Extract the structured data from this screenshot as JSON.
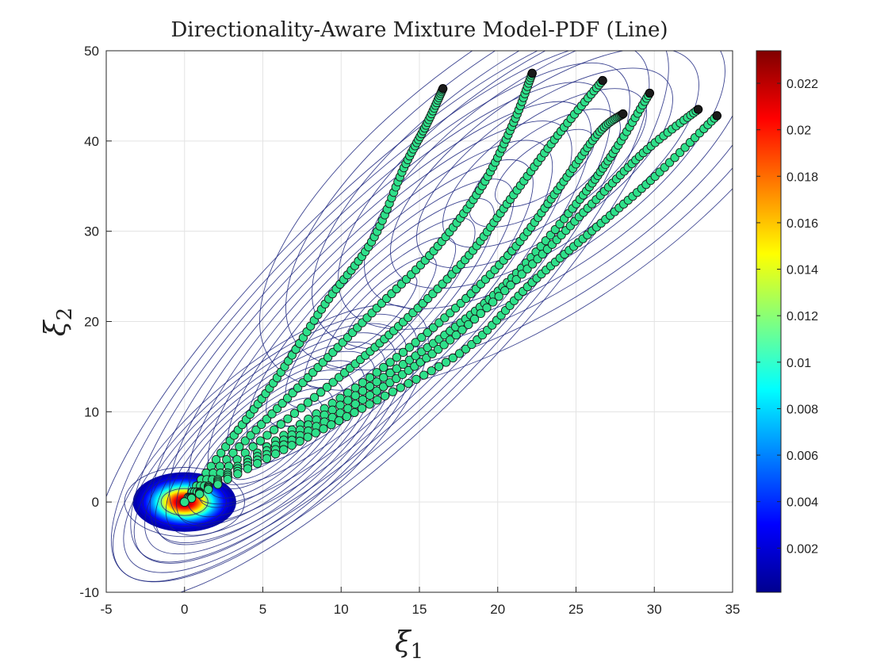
{
  "chart_data": {
    "type": "scatter",
    "title": "Directionality-Aware Mixture Model-PDF (Line)",
    "xlabel": "ξ",
    "xlabel_sub": "1",
    "ylabel": "ξ",
    "ylabel_sub": "2",
    "xlim": [
      -5,
      35
    ],
    "ylim": [
      -10,
      50
    ],
    "xticks": [
      -5,
      0,
      5,
      10,
      15,
      20,
      25,
      30,
      35
    ],
    "xtick_labels": [
      "-5",
      "0",
      "5",
      "10",
      "15",
      "20",
      "25",
      "30",
      "35"
    ],
    "yticks": [
      -10,
      0,
      10,
      20,
      30,
      40,
      50
    ],
    "ytick_labels": [
      "-10",
      "0",
      "10",
      "20",
      "30",
      "40",
      "50"
    ],
    "grid": true,
    "colormap": "jet",
    "colorbar": {
      "range": [
        0.0001,
        0.0234
      ],
      "ticks": [
        0.002,
        0.004,
        0.006,
        0.008,
        0.01,
        0.012,
        0.014,
        0.016,
        0.018,
        0.02,
        0.022
      ],
      "tick_labels": [
        "0.002",
        "0.004",
        "0.006",
        "0.008",
        "0.01",
        "0.012",
        "0.014",
        "0.016",
        "0.018",
        "0.02",
        "0.022"
      ]
    },
    "marker_color": "#2ee08a",
    "marker_edge_color": "#1a1a1a",
    "contour_color": "#1a237e",
    "density_components": [
      {
        "center": [
          0,
          0
        ],
        "spread": [
          1.3,
          1.3
        ],
        "peak": 0.0234
      },
      {
        "center": [
          5.5,
          6.5
        ],
        "spread": [
          3.0,
          2.0
        ],
        "angle_deg": 40,
        "peak": 0.004
      },
      {
        "center": [
          12.5,
          21
        ],
        "spread": [
          6.0,
          3.0
        ],
        "angle_deg": 45,
        "peak": 0.0025
      },
      {
        "center": [
          23,
          37
        ],
        "spread": [
          7.0,
          5.0
        ],
        "angle_deg": 35,
        "peak": 0.0015
      }
    ],
    "series": [
      {
        "points": [
          [
            0,
            0
          ],
          [
            3,
            7
          ],
          [
            6,
            14
          ],
          [
            9,
            22
          ],
          [
            12,
            29
          ],
          [
            14,
            37
          ],
          [
            15.5,
            42
          ],
          [
            16.5,
            45.8
          ]
        ]
      },
      {
        "points": [
          [
            0,
            0
          ],
          [
            4,
            7
          ],
          [
            8,
            14
          ],
          [
            12,
            21
          ],
          [
            16,
            28
          ],
          [
            19,
            35
          ],
          [
            21,
            42
          ],
          [
            22.2,
            47.5
          ]
        ]
      },
      {
        "points": [
          [
            0,
            0
          ],
          [
            5,
            7
          ],
          [
            10,
            14
          ],
          [
            14,
            20
          ],
          [
            18,
            27
          ],
          [
            21,
            34
          ],
          [
            24,
            41
          ],
          [
            26.7,
            46.7
          ]
        ]
      },
      {
        "points": [
          [
            0,
            0
          ],
          [
            6,
            7
          ],
          [
            12,
            14
          ],
          [
            17,
            21
          ],
          [
            21,
            28
          ],
          [
            24,
            35
          ],
          [
            26.5,
            41
          ],
          [
            28,
            43
          ]
        ]
      },
      {
        "points": [
          [
            0,
            0
          ],
          [
            6,
            6.5
          ],
          [
            12,
            13
          ],
          [
            17,
            19
          ],
          [
            21,
            25
          ],
          [
            25,
            33
          ],
          [
            27.5,
            39
          ],
          [
            29.7,
            45.3
          ]
        ]
      },
      {
        "points": [
          [
            0,
            0
          ],
          [
            6,
            6
          ],
          [
            12,
            12
          ],
          [
            17,
            18
          ],
          [
            22,
            26
          ],
          [
            26,
            33
          ],
          [
            29.5,
            39
          ],
          [
            32.8,
            43.5
          ]
        ]
      },
      {
        "points": [
          [
            0,
            0
          ],
          [
            6,
            5.5
          ],
          [
            12,
            11
          ],
          [
            18,
            17
          ],
          [
            22,
            24
          ],
          [
            26,
            30
          ],
          [
            30,
            36
          ],
          [
            34,
            42.8
          ]
        ]
      }
    ]
  }
}
